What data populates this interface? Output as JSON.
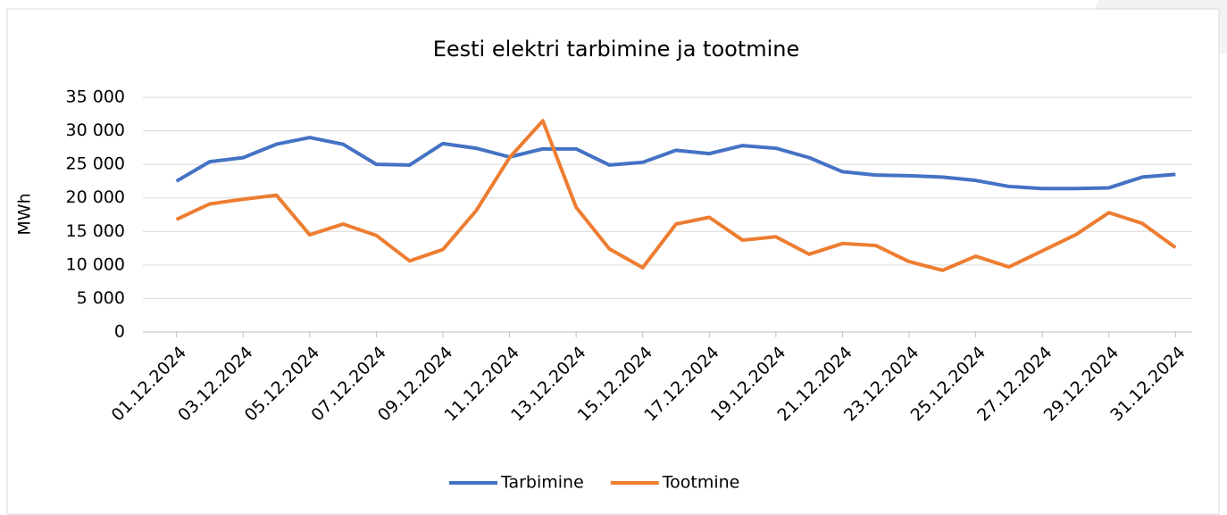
{
  "chart_data": {
    "type": "line",
    "title": "Eesti elektri tarbimine ja tootmine",
    "y_label": "MWh",
    "categories": [
      "01.12.2024",
      null,
      "03.12.2024",
      null,
      "05.12.2024",
      null,
      "07.12.2024",
      null,
      "09.12.2024",
      null,
      "11.12.2024",
      null,
      "13.12.2024",
      null,
      "15.12.2024",
      null,
      "17.12.2024",
      null,
      "19.12.2024",
      null,
      "21.12.2024",
      null,
      "23.12.2024",
      null,
      "25.12.2024",
      null,
      "27.12.2024",
      null,
      "29.12.2024",
      null,
      "31.12.2024"
    ],
    "series": [
      {
        "name": "Tarbimine",
        "color": "#4472c4",
        "values": [
          22500,
          25400,
          26000,
          28000,
          29000,
          28000,
          25000,
          24900,
          28100,
          27400,
          26100,
          27300,
          27300,
          24900,
          25300,
          27100,
          26600,
          27800,
          27400,
          26000,
          23900,
          23400,
          23300,
          23100,
          22600,
          21700,
          21400,
          21400,
          21500,
          23100,
          23500
        ]
      },
      {
        "name": "Tootmine",
        "color": "#ed7d31",
        "values": [
          16800,
          19100,
          19800,
          20400,
          14500,
          16100,
          14400,
          10600,
          12300,
          18100,
          26000,
          31500,
          18600,
          12400,
          9600,
          16100,
          17100,
          13700,
          14200,
          11600,
          13200,
          12900,
          10500,
          9200,
          11300,
          9700,
          12100,
          14500,
          17800,
          16200,
          12600
        ]
      }
    ],
    "ylim": [
      0,
      35000
    ],
    "yticks": [
      0,
      {
        "value": 5000,
        "label": "5 000"
      },
      {
        "value": 10000,
        "label": "10 000"
      },
      {
        "value": 15000,
        "label": "15 000"
      },
      {
        "value": 20000,
        "label": "20 000"
      },
      {
        "value": 25000,
        "label": "25 000"
      },
      {
        "value": 30000,
        "label": "30 000"
      },
      {
        "value": 35000,
        "label": "35 000"
      }
    ],
    "grid": true,
    "legend": "bottom"
  }
}
